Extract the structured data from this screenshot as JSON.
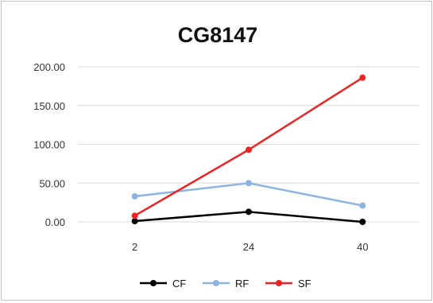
{
  "chart_data": {
    "type": "line",
    "title": "CG8147",
    "categories": [
      "2",
      "24",
      "40"
    ],
    "y_ticks": [
      "0.00",
      "50.00",
      "100.00",
      "150.00",
      "200.00"
    ],
    "ylim": [
      0,
      200
    ],
    "grid": "horizontal",
    "legend_position": "bottom",
    "series": [
      {
        "name": "CF",
        "color": "#000000",
        "values": [
          1,
          13,
          0
        ]
      },
      {
        "name": "RF",
        "color": "#8eb4e3",
        "values": [
          33,
          50,
          21
        ]
      },
      {
        "name": "SF",
        "color": "#ee2222",
        "values": [
          8,
          93,
          186
        ]
      }
    ]
  }
}
